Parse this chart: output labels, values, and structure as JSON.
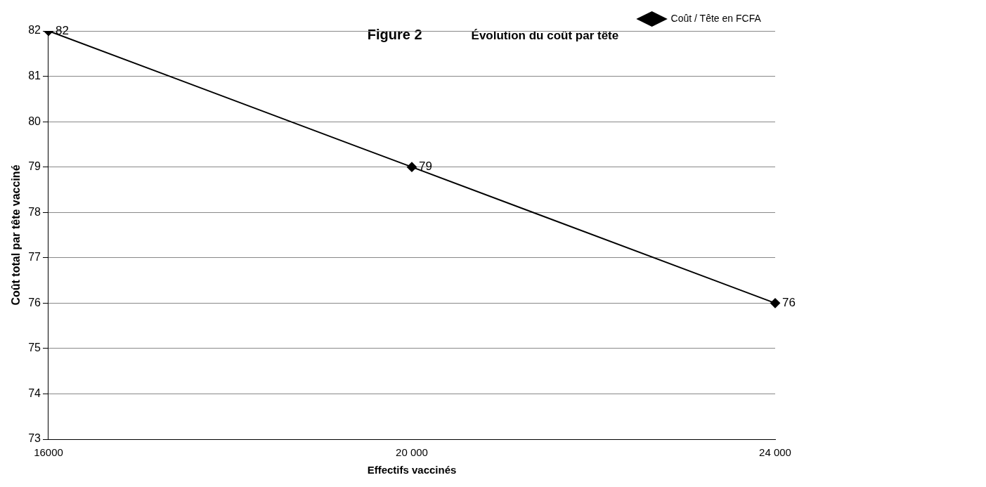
{
  "chart_data": {
    "type": "line",
    "title": "Figure 2",
    "subtitle": "Évolution du coût par tête",
    "xlabel": "Effectifs vaccinés",
    "ylabel": "Coût total par tête vacciné",
    "categories": [
      "16000",
      "20 000",
      "24 000"
    ],
    "series": [
      {
        "name": "Coût / Tête en FCFA",
        "color": "#000000",
        "values": [
          82,
          79,
          76
        ]
      }
    ],
    "ylim": [
      73,
      82
    ],
    "yticks": [
      73,
      74,
      75,
      76,
      77,
      78,
      79,
      80,
      81,
      82
    ],
    "grid": "y",
    "legend": "top right",
    "marker": "diamond",
    "line_style": "solid",
    "data_labels": true
  }
}
